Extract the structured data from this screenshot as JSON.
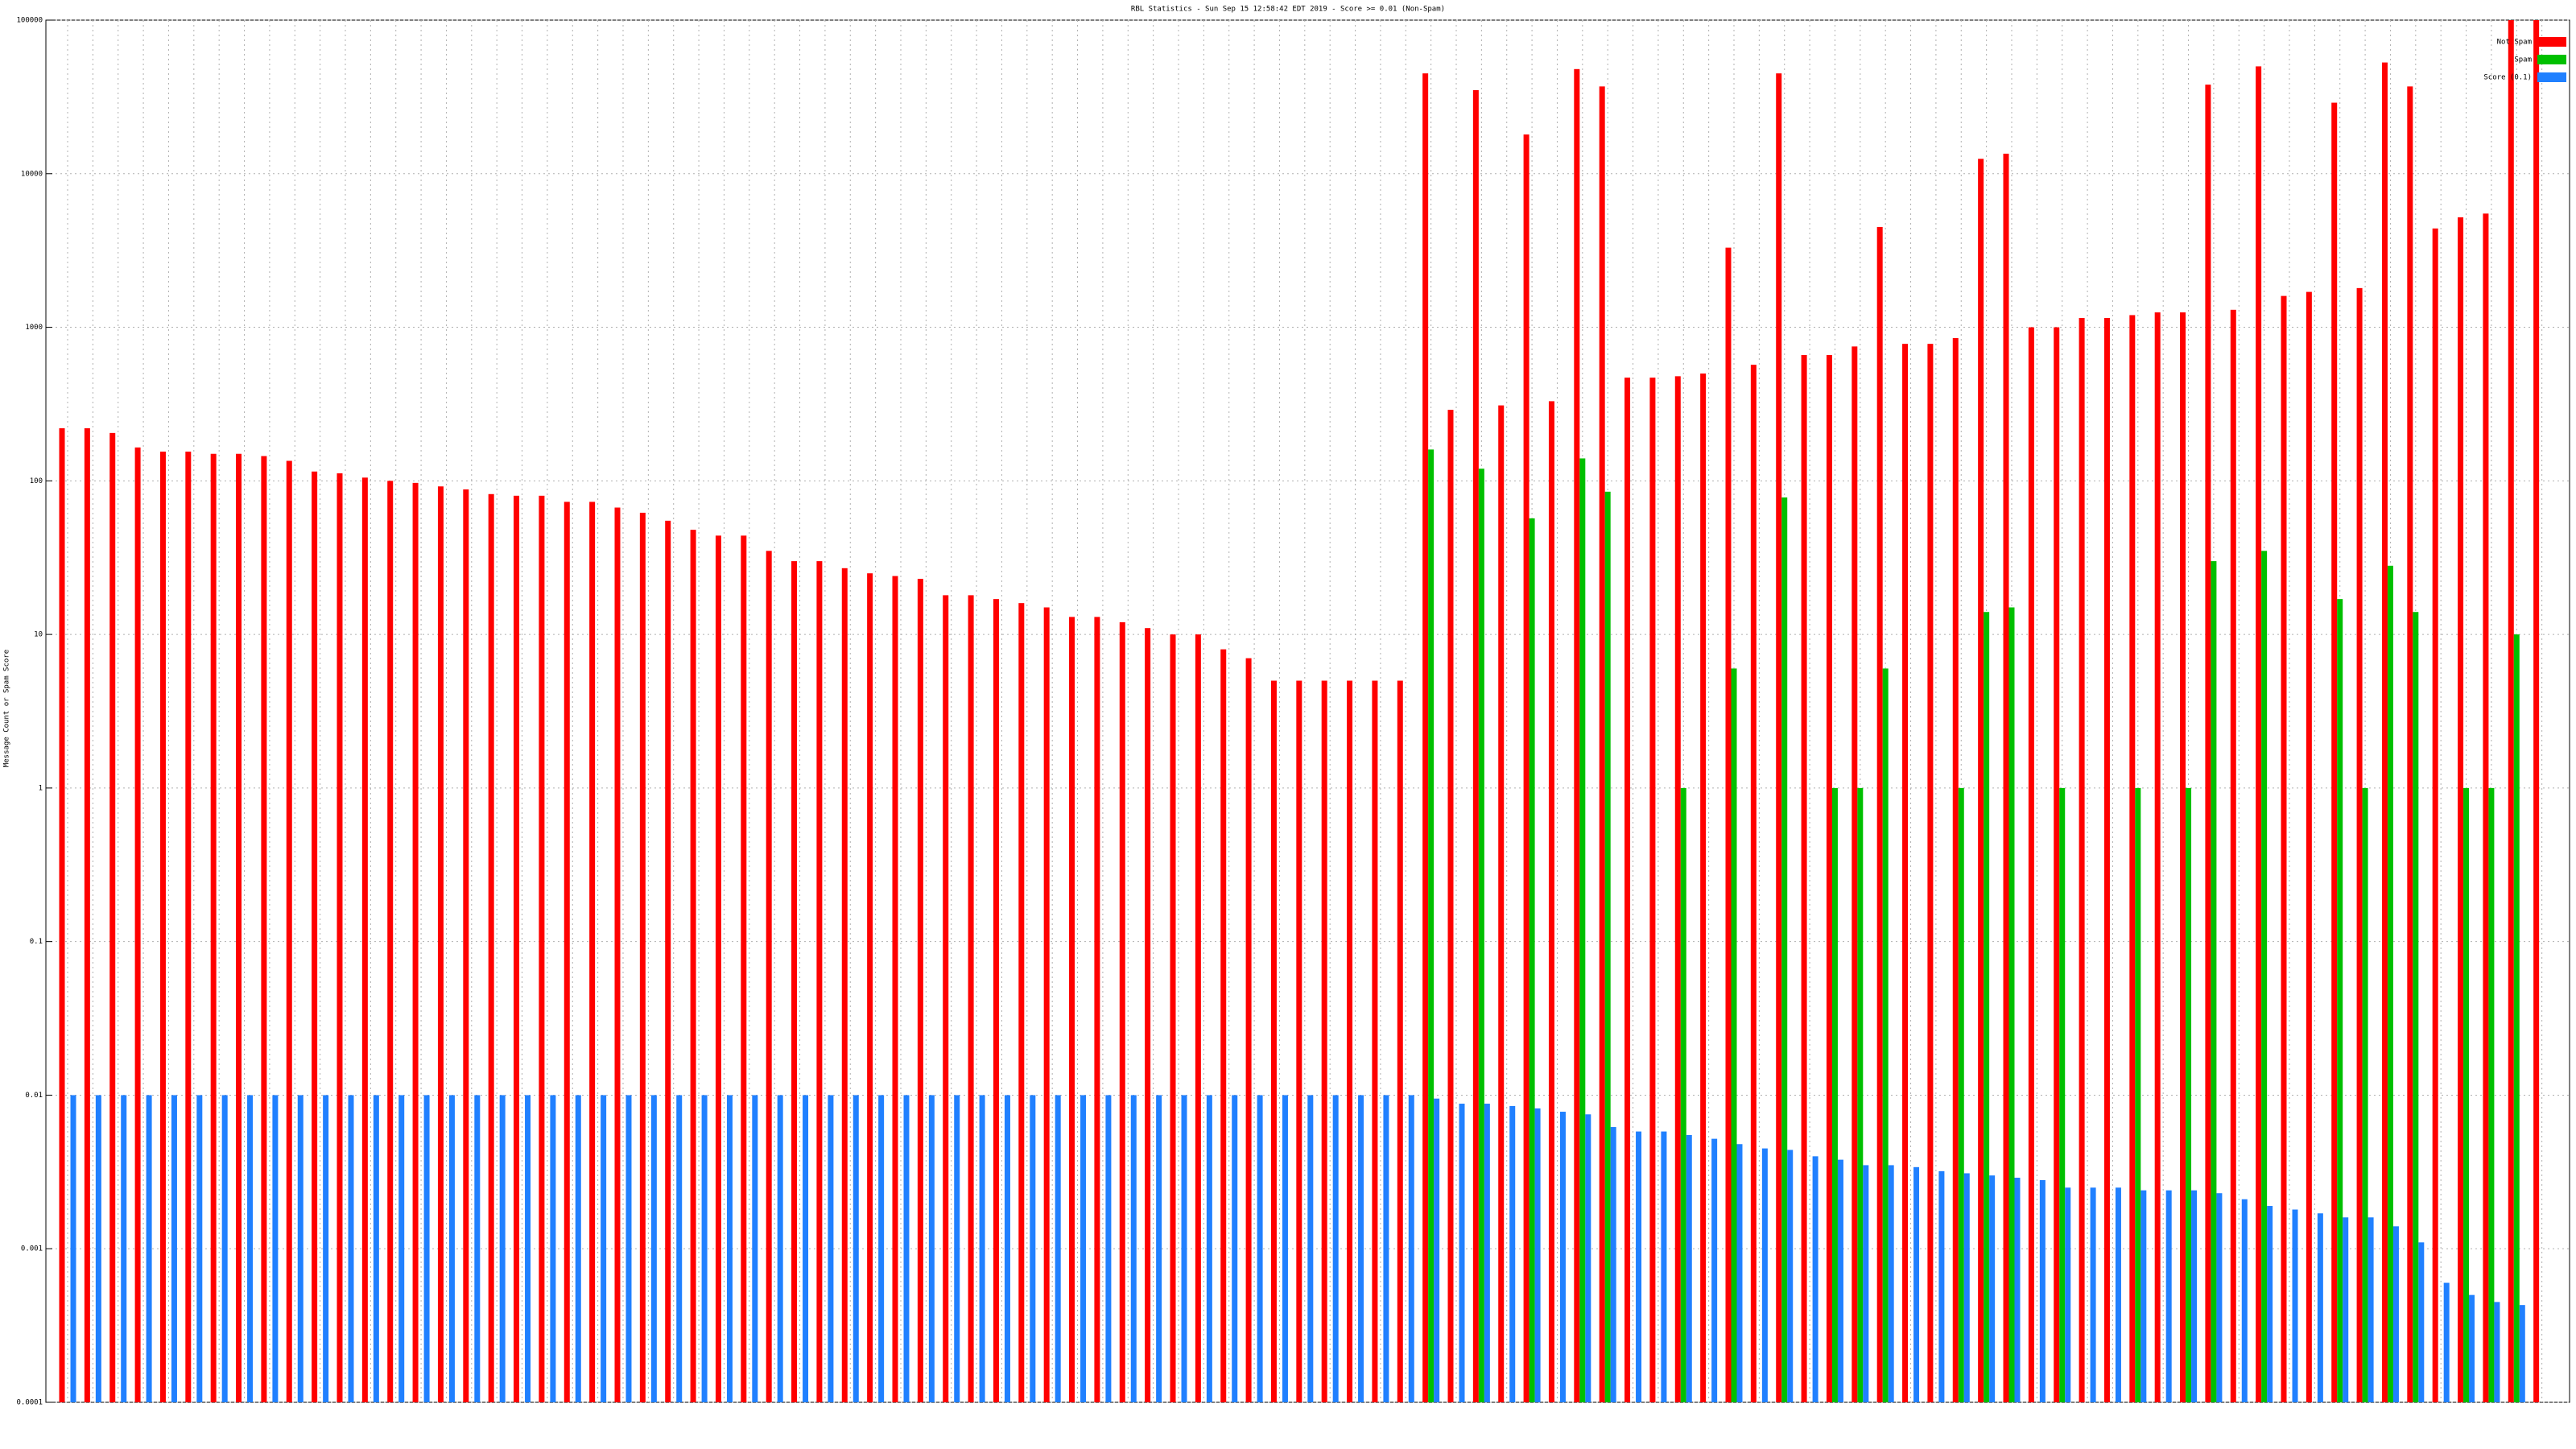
{
  "chart_data": {
    "type": "bar",
    "title": "RBL Statistics - Sun Sep 15 12:58:42 EDT 2019 - Score >= 0.01 (Non-Spam)",
    "y_label": "Message Count or Spam Score",
    "log_y": true,
    "grid": true,
    "legend": "top-right",
    "categories": [
      null,
      null,
      null,
      null,
      null,
      null,
      null,
      null,
      null,
      null,
      null,
      null,
      null,
      null,
      null,
      null,
      null,
      null,
      null,
      null,
      null,
      null,
      null,
      null,
      null,
      null,
      null,
      null,
      null,
      null,
      null,
      null,
      null,
      null,
      null,
      null,
      null,
      null,
      null,
      null,
      null,
      null,
      null,
      null,
      null,
      null,
      null,
      null,
      null,
      null,
      null,
      null,
      null,
      null,
      null,
      null,
      null,
      null,
      null,
      null,
      null,
      null,
      null,
      null,
      null,
      null,
      null,
      null,
      null,
      null,
      null,
      null,
      null,
      null,
      null,
      null,
      null,
      null,
      null,
      null,
      null,
      null,
      null,
      null,
      null,
      null,
      null,
      null,
      null,
      null,
      null,
      null,
      null,
      null,
      null,
      null,
      null,
      null,
      null
    ],
    "series": [
      {
        "name": "Not Spam",
        "color": "#ff0000",
        "values": [
          220,
          220,
          205,
          165,
          155,
          155,
          150,
          150,
          145,
          135,
          115,
          112,
          105,
          100,
          97,
          92,
          88,
          82,
          80,
          80,
          73,
          73,
          67,
          62,
          55,
          48,
          44,
          44,
          35,
          30,
          30,
          27,
          25,
          24,
          23,
          18,
          18,
          17,
          16,
          15,
          13,
          13,
          12,
          11,
          10,
          10,
          8,
          7,
          5,
          5,
          5,
          5,
          5,
          5,
          45000,
          290,
          35000,
          310,
          18000,
          330,
          48000,
          37000,
          470,
          470,
          480,
          500,
          3300,
          570,
          45000,
          660,
          660,
          750,
          4500,
          780,
          780,
          850,
          12500,
          13500,
          1000,
          1000,
          1150,
          1150,
          1200,
          1250,
          1250,
          38000,
          1300,
          50000,
          1600,
          1700,
          29000,
          1800,
          53000,
          37000,
          4400,
          5200,
          5500,
          100000,
          100000
        ]
      },
      {
        "name": "Spam",
        "color": "#00c000",
        "values": [
          null,
          null,
          null,
          null,
          null,
          null,
          null,
          null,
          null,
          null,
          null,
          null,
          null,
          null,
          null,
          null,
          null,
          null,
          null,
          null,
          null,
          null,
          null,
          null,
          null,
          null,
          null,
          null,
          null,
          null,
          null,
          null,
          null,
          null,
          null,
          null,
          null,
          null,
          null,
          null,
          null,
          null,
          null,
          null,
          null,
          null,
          null,
          null,
          null,
          null,
          null,
          null,
          null,
          null,
          160,
          null,
          120,
          null,
          57,
          null,
          140,
          85,
          null,
          null,
          1,
          null,
          6,
          null,
          78,
          null,
          1,
          1,
          6,
          null,
          null,
          1,
          14,
          15,
          null,
          1,
          null,
          null,
          1,
          null,
          1,
          30,
          null,
          35,
          null,
          null,
          17,
          1,
          28,
          14,
          null,
          1,
          1,
          10,
          null
        ]
      },
      {
        "name": "Score (0.1)",
        "color": "#2080ff",
        "values": [
          0.01,
          0.01,
          0.01,
          0.01,
          0.01,
          0.01,
          0.01,
          0.01,
          0.01,
          0.01,
          0.01,
          0.01,
          0.01,
          0.01,
          0.01,
          0.01,
          0.01,
          0.01,
          0.01,
          0.01,
          0.01,
          0.01,
          0.01,
          0.01,
          0.01,
          0.01,
          0.01,
          0.01,
          0.01,
          0.01,
          0.01,
          0.01,
          0.01,
          0.01,
          0.01,
          0.01,
          0.01,
          0.01,
          0.01,
          0.01,
          0.01,
          0.01,
          0.01,
          0.01,
          0.01,
          0.01,
          0.01,
          0.01,
          0.01,
          0.01,
          0.01,
          0.01,
          0.01,
          0.01,
          0.0095,
          0.0088,
          0.0088,
          0.0085,
          0.0082,
          0.0078,
          0.0075,
          0.0062,
          0.0058,
          0.0058,
          0.0055,
          0.0052,
          0.0048,
          0.0045,
          0.0044,
          0.004,
          0.0038,
          0.0035,
          0.0035,
          0.0034,
          0.0032,
          0.0031,
          0.003,
          0.0029,
          0.0028,
          0.0025,
          0.0025,
          0.0025,
          0.0024,
          0.0024,
          0.0024,
          0.0023,
          0.0021,
          0.0019,
          0.0018,
          0.0017,
          0.0016,
          0.0016,
          0.0014,
          0.0011,
          0.0006,
          0.0005,
          0.00045,
          0.00043,
          null
        ]
      }
    ],
    "ylim": [
      0.0001,
      100000
    ],
    "yticks": [
      0.0001,
      0.001,
      0.01,
      0.1,
      1,
      10,
      100,
      1000,
      10000,
      100000
    ]
  }
}
